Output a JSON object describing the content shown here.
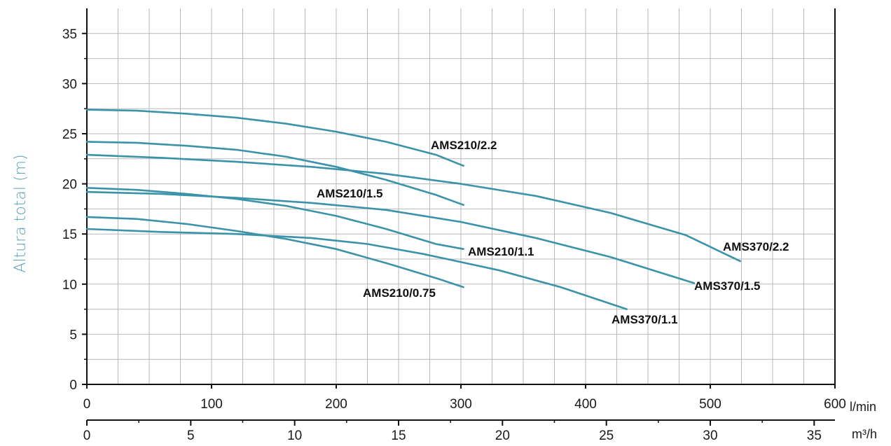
{
  "chart_data": {
    "type": "line",
    "ylabel": "Altura total (m)",
    "x_unit_primary": "l/min",
    "x_unit_secondary": "m³/h",
    "ylim": [
      0,
      37.5
    ],
    "xlim": [
      0,
      600
    ],
    "y_ticks": [
      "0",
      "5",
      "10",
      "15",
      "20",
      "25",
      "30",
      "35"
    ],
    "x_ticks_primary": [
      "0",
      "100",
      "200",
      "300",
      "400",
      "500",
      "600"
    ],
    "x_ticks_secondary": [
      "0",
      "5",
      "10",
      "15",
      "20",
      "25",
      "30",
      "35"
    ],
    "grid": true,
    "line_color": "#3a93a8",
    "ylabel_color": "#5aa3b8",
    "series": [
      {
        "name": "AMS210/2.2",
        "x": [
          0,
          40,
          80,
          120,
          160,
          200,
          240,
          280,
          302
        ],
        "y": [
          27.4,
          27.3,
          27.0,
          26.6,
          26.0,
          25.2,
          24.2,
          22.9,
          21.8
        ]
      },
      {
        "name": "AMS210/1.5",
        "x": [
          0,
          40,
          80,
          120,
          160,
          200,
          240,
          280,
          302
        ],
        "y": [
          24.2,
          24.1,
          23.8,
          23.4,
          22.7,
          21.7,
          20.4,
          18.9,
          17.9
        ]
      },
      {
        "name": "AMS370/2.2",
        "x": [
          0,
          60,
          120,
          180,
          240,
          300,
          360,
          420,
          480,
          524
        ],
        "y": [
          22.9,
          22.6,
          22.2,
          21.7,
          21.0,
          20.0,
          18.8,
          17.1,
          14.9,
          12.3
        ]
      },
      {
        "name": "AMS210/1.1",
        "x": [
          0,
          40,
          80,
          120,
          160,
          200,
          240,
          280,
          302
        ],
        "y": [
          19.6,
          19.4,
          19.0,
          18.5,
          17.8,
          16.8,
          15.5,
          14.0,
          13.5
        ]
      },
      {
        "name": "AMS370/1.5",
        "x": [
          0,
          60,
          120,
          180,
          240,
          300,
          360,
          420,
          487
        ],
        "y": [
          19.2,
          19.0,
          18.6,
          18.1,
          17.4,
          16.2,
          14.6,
          12.7,
          10.1
        ]
      },
      {
        "name": "AMS210/0.75",
        "x": [
          0,
          40,
          80,
          120,
          160,
          200,
          240,
          280,
          302
        ],
        "y": [
          16.7,
          16.5,
          16.0,
          15.3,
          14.5,
          13.5,
          12.1,
          10.6,
          9.7
        ]
      },
      {
        "name": "AMS370/1.1",
        "x": [
          0,
          60,
          120,
          180,
          225,
          270,
          330,
          380,
          433
        ],
        "y": [
          15.5,
          15.2,
          15.0,
          14.6,
          14.0,
          13.0,
          11.4,
          9.7,
          7.5
        ]
      }
    ]
  }
}
